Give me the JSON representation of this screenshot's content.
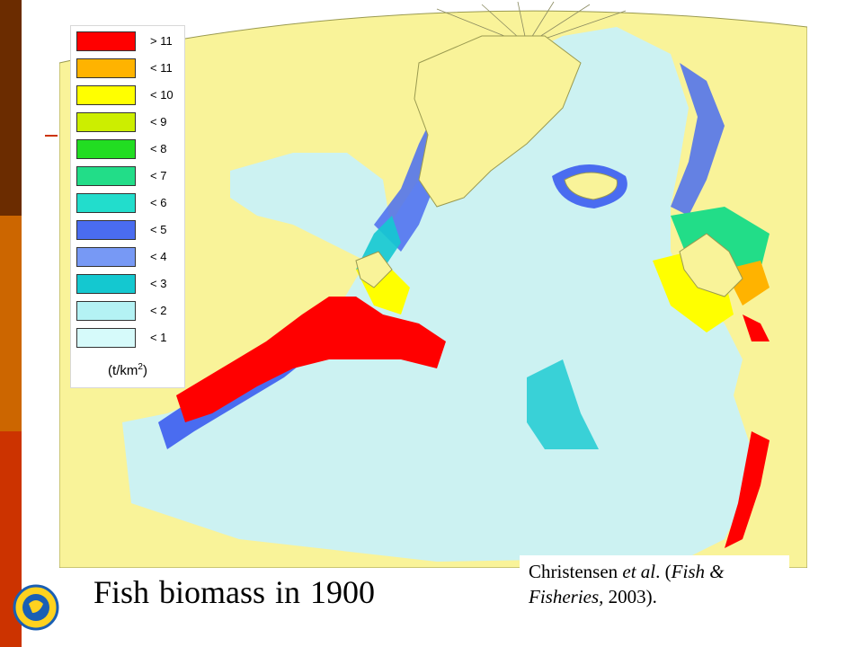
{
  "colors": {
    "land": "#f9f399",
    "coast_line": "#9a9a50",
    "ocean_light": "#ccf2f2",
    "sidebar_top": "#6b2c00",
    "sidebar_mid": "#cc6600",
    "sidebar_bottom": "#cc3300"
  },
  "legend": {
    "items": [
      {
        "label": "> 11",
        "color": "#ff0000"
      },
      {
        "label": "< 11",
        "color": "#ffb300"
      },
      {
        "label": "< 10",
        "color": "#ffff00"
      },
      {
        "label": "< 9",
        "color": "#ccee00"
      },
      {
        "label": "< 8",
        "color": "#22dd22"
      },
      {
        "label": "< 7",
        "color": "#22dd88"
      },
      {
        "label": "< 6",
        "color": "#22ddcc"
      },
      {
        "label": "< 5",
        "color": "#4a6cf0"
      },
      {
        "label": "< 4",
        "color": "#7799f5"
      },
      {
        "label": "< 3",
        "color": "#14c8d0"
      },
      {
        "label": "< 2",
        "color": "#b4f2f4"
      },
      {
        "label": "< 1",
        "color": "#d6fafa"
      }
    ],
    "unit_base": "(t/km",
    "unit_exp": "2",
    "unit_close": ")"
  },
  "title": "Fish biomass in 1900",
  "citation": {
    "author": "Christensen ",
    "etal": "et al",
    "after_etal": ". (",
    "journal_line1": "Fish &",
    "journal_line2": "Fisheries,",
    "year": " 2003)."
  },
  "logo_icon": "sea-around-us-logo-icon"
}
